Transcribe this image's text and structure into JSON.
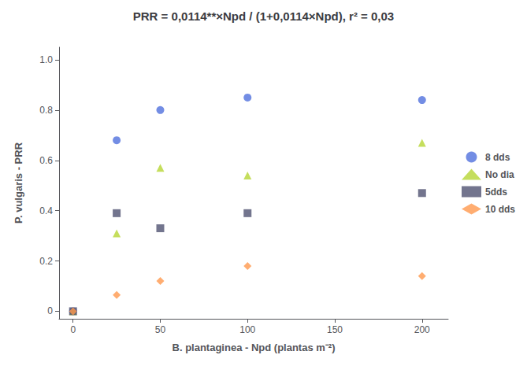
{
  "chart_data": {
    "type": "scatter",
    "title": "PRR = 0,0114**×Npd / (1+0,0114×Npd), r² = 0,03",
    "xlabel": "B. plantaginea - Npd (plantas m⁻²)",
    "ylabel": "P. vulgaris - PRR",
    "x": [
      0,
      25,
      50,
      100,
      200
    ],
    "series": [
      {
        "name": "8 dds",
        "marker": "circle",
        "values": [
          0.0,
          0.68,
          0.8,
          0.85,
          0.84
        ]
      },
      {
        "name": "No dia",
        "marker": "triangle",
        "values": [
          0.0,
          0.31,
          0.57,
          0.54,
          0.67
        ]
      },
      {
        "name": "5dds",
        "marker": "square",
        "values": [
          0.0,
          0.39,
          0.33,
          0.39,
          0.47
        ]
      },
      {
        "name": "10 dds",
        "marker": "diamond",
        "values": [
          0.0,
          0.065,
          0.12,
          0.18,
          0.14
        ]
      }
    ],
    "xlim": [
      -8,
      215
    ],
    "ylim": [
      -0.03,
      1.05
    ],
    "xticks": [
      0,
      50,
      100,
      150,
      200
    ],
    "yticks": [
      0,
      0.2,
      0.4,
      0.6,
      0.8,
      {
        "value": 1.0,
        "label": "1.0"
      }
    ],
    "grid": false,
    "legend": "right"
  }
}
